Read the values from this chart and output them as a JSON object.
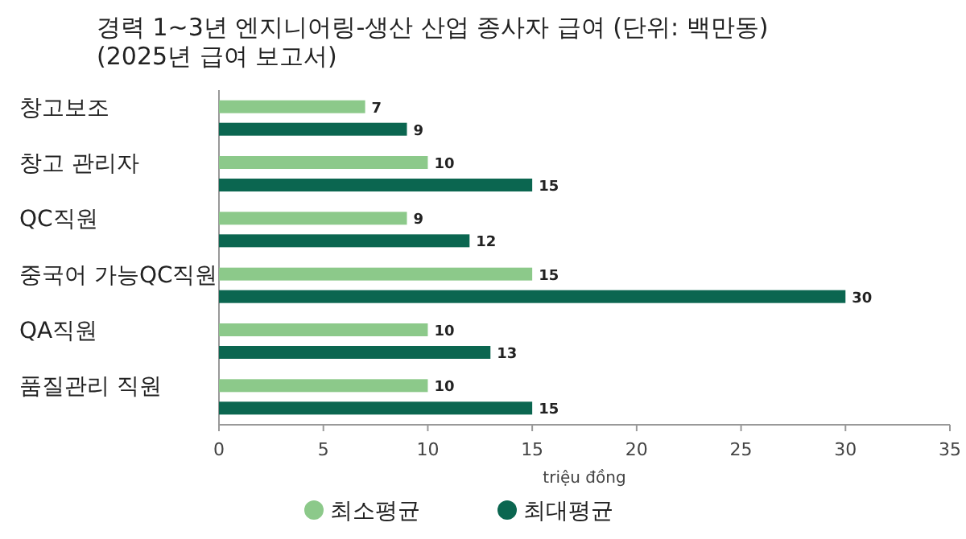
{
  "chart_data": {
    "type": "bar",
    "orientation": "horizontal",
    "title": "경력 1~3년 엔지니어링-생산 산업 종사자 급여 (단위: 백만동)",
    "subtitle": "(2025년 급여 보고서)",
    "xlabel": "triệu đồng",
    "categories": [
      "창고보조",
      "창고 관리자",
      "QC직원",
      "중국어 가능QC직원",
      "QA직원",
      "품질관리 직원"
    ],
    "series": [
      {
        "name": "최소평균",
        "color": "#8cc98a",
        "values": [
          7,
          10,
          9,
          15,
          10,
          10
        ]
      },
      {
        "name": "최대평균",
        "color": "#0b6650",
        "values": [
          9,
          15,
          12,
          30,
          13,
          15
        ]
      }
    ],
    "xlim": [
      0,
      35
    ],
    "xticks": [
      0,
      5,
      10,
      15,
      20,
      25,
      30,
      35
    ],
    "data_labels": true,
    "legend": "bottom",
    "grid": false
  }
}
